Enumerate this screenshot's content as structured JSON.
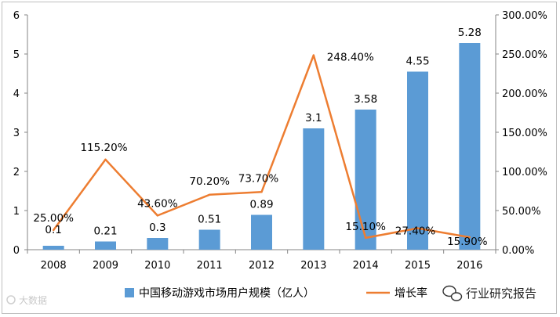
{
  "chart_data": {
    "type": "bar+line",
    "categories": [
      "2008",
      "2009",
      "2010",
      "2011",
      "2012",
      "2013",
      "2014",
      "2015",
      "2016"
    ],
    "series": [
      {
        "name": "中国移动游戏市场用户规模（亿人）",
        "type": "bar",
        "axis": "left",
        "color": "#5b9bd5",
        "values": [
          0.1,
          0.21,
          0.3,
          0.51,
          0.89,
          3.1,
          3.58,
          4.55,
          5.28
        ],
        "labels": [
          "0.1",
          "0.21",
          "0.3",
          "0.51",
          "0.89",
          "3.1",
          "3.58",
          "4.55",
          "5.28"
        ]
      },
      {
        "name": "增长率",
        "type": "line",
        "axis": "right",
        "color": "#ed7d31",
        "values": [
          25.0,
          115.2,
          43.6,
          70.2,
          73.7,
          248.4,
          15.1,
          27.4,
          15.9
        ],
        "labels": [
          "25.00%",
          "115.20%",
          "43.60%",
          "70.20%",
          "73.70%",
          "248.40%",
          "15.10%",
          "27.40%",
          "15.90%"
        ]
      }
    ],
    "y_left": {
      "ylim": [
        0,
        6
      ],
      "ticks": [
        "0",
        "1",
        "2",
        "3",
        "4",
        "5",
        "6"
      ]
    },
    "y_right": {
      "ylim": [
        0,
        300
      ],
      "ticks": [
        "0.00%",
        "50.00%",
        "100.00%",
        "150.00%",
        "200.00%",
        "250.00%",
        "300.00%"
      ]
    },
    "legend_position": "bottom-center",
    "grid": false
  },
  "watermarks": {
    "left": "大数据",
    "right": "行业研究报告"
  }
}
